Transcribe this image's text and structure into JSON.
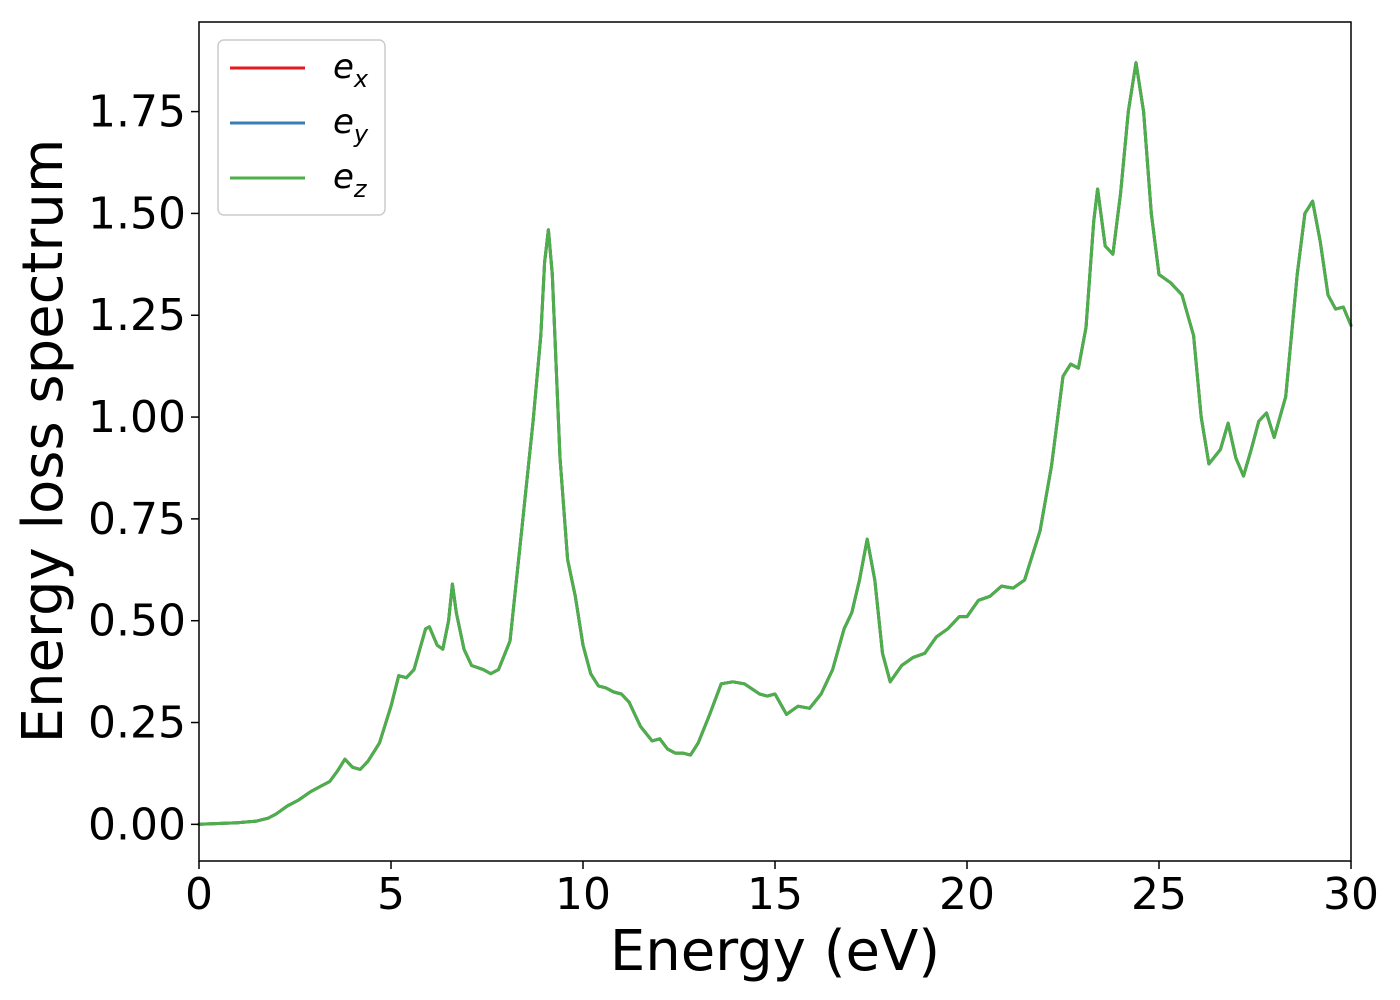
{
  "chart_data": {
    "type": "line",
    "title": "",
    "xlabel": "Energy (eV)",
    "ylabel": "Energy loss spectrum",
    "xlim": [
      0,
      30
    ],
    "ylim": [
      -0.09,
      1.97
    ],
    "x_ticks": [
      "0",
      "5",
      "10",
      "15",
      "20",
      "25",
      "30"
    ],
    "y_ticks": [
      "0.00",
      "0.25",
      "0.50",
      "0.75",
      "1.00",
      "1.25",
      "1.50",
      "1.75"
    ],
    "grid": false,
    "legend_position": "top-left",
    "series": [
      {
        "name": "e",
        "subscript": "x",
        "color": "#e41a1c"
      },
      {
        "name": "e",
        "subscript": "y",
        "color": "#377eb8"
      },
      {
        "name": "e",
        "subscript": "z",
        "color": "#4daf4a"
      }
    ],
    "x": [
      0,
      0.5,
      1.0,
      1.5,
      1.8,
      2.0,
      2.3,
      2.6,
      2.9,
      3.1,
      3.4,
      3.6,
      3.8,
      4.0,
      4.2,
      4.4,
      4.7,
      5.0,
      5.2,
      5.4,
      5.6,
      5.9,
      6.0,
      6.2,
      6.35,
      6.5,
      6.6,
      6.7,
      6.9,
      7.1,
      7.4,
      7.6,
      7.8,
      8.1,
      8.4,
      8.7,
      8.9,
      9.0,
      9.1,
      9.2,
      9.4,
      9.6,
      9.8,
      10.0,
      10.2,
      10.4,
      10.6,
      10.8,
      11.0,
      11.2,
      11.5,
      11.8,
      12.0,
      12.2,
      12.4,
      12.6,
      12.8,
      13.0,
      13.3,
      13.6,
      13.9,
      14.2,
      14.6,
      14.8,
      15.0,
      15.3,
      15.6,
      15.9,
      16.2,
      16.5,
      16.8,
      17.0,
      17.2,
      17.4,
      17.6,
      17.8,
      18.0,
      18.3,
      18.6,
      18.9,
      19.2,
      19.5,
      19.8,
      20.0,
      20.3,
      20.6,
      20.9,
      21.2,
      21.5,
      21.9,
      22.2,
      22.5,
      22.7,
      22.9,
      23.1,
      23.3,
      23.4,
      23.6,
      23.8,
      24.0,
      24.2,
      24.4,
      24.6,
      24.8,
      25.0,
      25.3,
      25.6,
      25.9,
      26.1,
      26.3,
      26.6,
      26.8,
      27.0,
      27.2,
      27.4,
      27.6,
      27.8,
      28.0,
      28.3,
      28.6,
      28.8,
      29.0,
      29.2,
      29.4,
      29.6,
      29.8,
      30.0
    ],
    "y": [
      0.0,
      0.002,
      0.004,
      0.008,
      0.015,
      0.025,
      0.045,
      0.06,
      0.08,
      0.09,
      0.105,
      0.13,
      0.16,
      0.14,
      0.135,
      0.155,
      0.2,
      0.29,
      0.365,
      0.36,
      0.38,
      0.48,
      0.485,
      0.44,
      0.43,
      0.5,
      0.59,
      0.52,
      0.43,
      0.39,
      0.38,
      0.37,
      0.38,
      0.45,
      0.72,
      0.99,
      1.2,
      1.38,
      1.46,
      1.35,
      0.9,
      0.65,
      0.56,
      0.44,
      0.37,
      0.34,
      0.335,
      0.325,
      0.32,
      0.3,
      0.24,
      0.205,
      0.21,
      0.185,
      0.175,
      0.175,
      0.17,
      0.2,
      0.27,
      0.345,
      0.35,
      0.345,
      0.32,
      0.315,
      0.32,
      0.27,
      0.29,
      0.285,
      0.32,
      0.38,
      0.48,
      0.52,
      0.6,
      0.7,
      0.6,
      0.42,
      0.35,
      0.39,
      0.41,
      0.42,
      0.46,
      0.48,
      0.51,
      0.51,
      0.55,
      0.56,
      0.585,
      0.58,
      0.6,
      0.72,
      0.88,
      1.1,
      1.13,
      1.12,
      1.22,
      1.48,
      1.56,
      1.42,
      1.4,
      1.55,
      1.75,
      1.87,
      1.75,
      1.5,
      1.35,
      1.33,
      1.3,
      1.2,
      1.0,
      0.885,
      0.92,
      0.985,
      0.9,
      0.855,
      0.92,
      0.99,
      1.01,
      0.95,
      1.05,
      1.35,
      1.5,
      1.53,
      1.43,
      1.3,
      1.265,
      1.27,
      1.225
    ]
  }
}
